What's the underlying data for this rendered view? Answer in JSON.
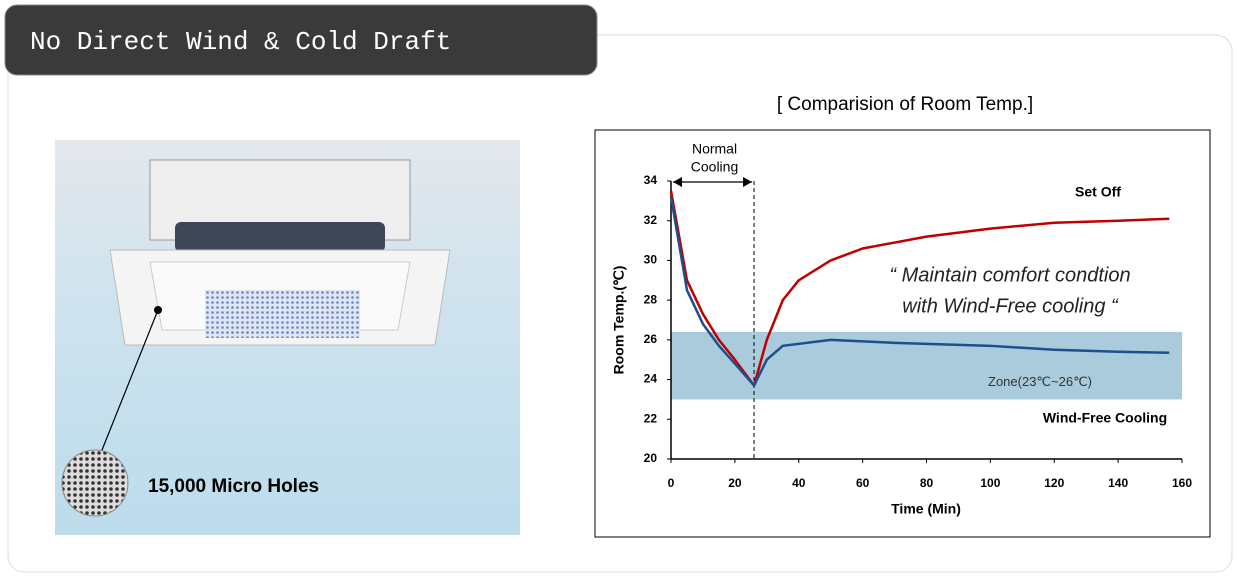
{
  "header": {
    "title": "No Direct Wind & Cold Draft"
  },
  "image": {
    "caption": "15,000 Micro Holes"
  },
  "chart_data": {
    "type": "line",
    "title": "[ Comparision of  Room Temp.]",
    "x_label": "Time (Min)",
    "y_label": "Room Temp.(℃)",
    "xlim": [
      0,
      160
    ],
    "xticks": [
      0,
      20,
      40,
      60,
      80,
      100,
      120,
      140,
      160
    ],
    "ylim": [
      20,
      34
    ],
    "yticks": [
      20,
      22,
      24,
      26,
      28,
      30,
      32,
      34
    ],
    "zone": {
      "label": "Zone(23℃~26℃)",
      "range": [
        23,
        26.4
      ],
      "color": "#a9cbdc"
    },
    "normal_cooling": {
      "label": [
        "Normal",
        "Cooling"
      ],
      "end": 26
    },
    "annotation": [
      "“ Maintain comfort condtion",
      "with Wind-Free cooling “"
    ],
    "series": [
      {
        "name": "Set Off",
        "color": "#c00000",
        "x": [
          0,
          5,
          10,
          15,
          20,
          26,
          30,
          35,
          40,
          50,
          60,
          80,
          100,
          120,
          140,
          156
        ],
        "values": [
          33.5,
          29,
          27.3,
          26,
          25,
          23.7,
          26,
          28,
          29,
          30,
          30.6,
          31.2,
          31.6,
          31.9,
          32,
          32.1
        ]
      },
      {
        "name": "Wind-Free Cooling",
        "color": "#1f4e8c",
        "x": [
          0,
          5,
          10,
          15,
          20,
          26,
          30,
          35,
          50,
          70,
          100,
          120,
          140,
          156
        ],
        "values": [
          33.2,
          28.5,
          26.8,
          25.7,
          24.8,
          23.7,
          25,
          25.7,
          26,
          25.85,
          25.7,
          25.5,
          25.4,
          25.35
        ]
      }
    ]
  }
}
